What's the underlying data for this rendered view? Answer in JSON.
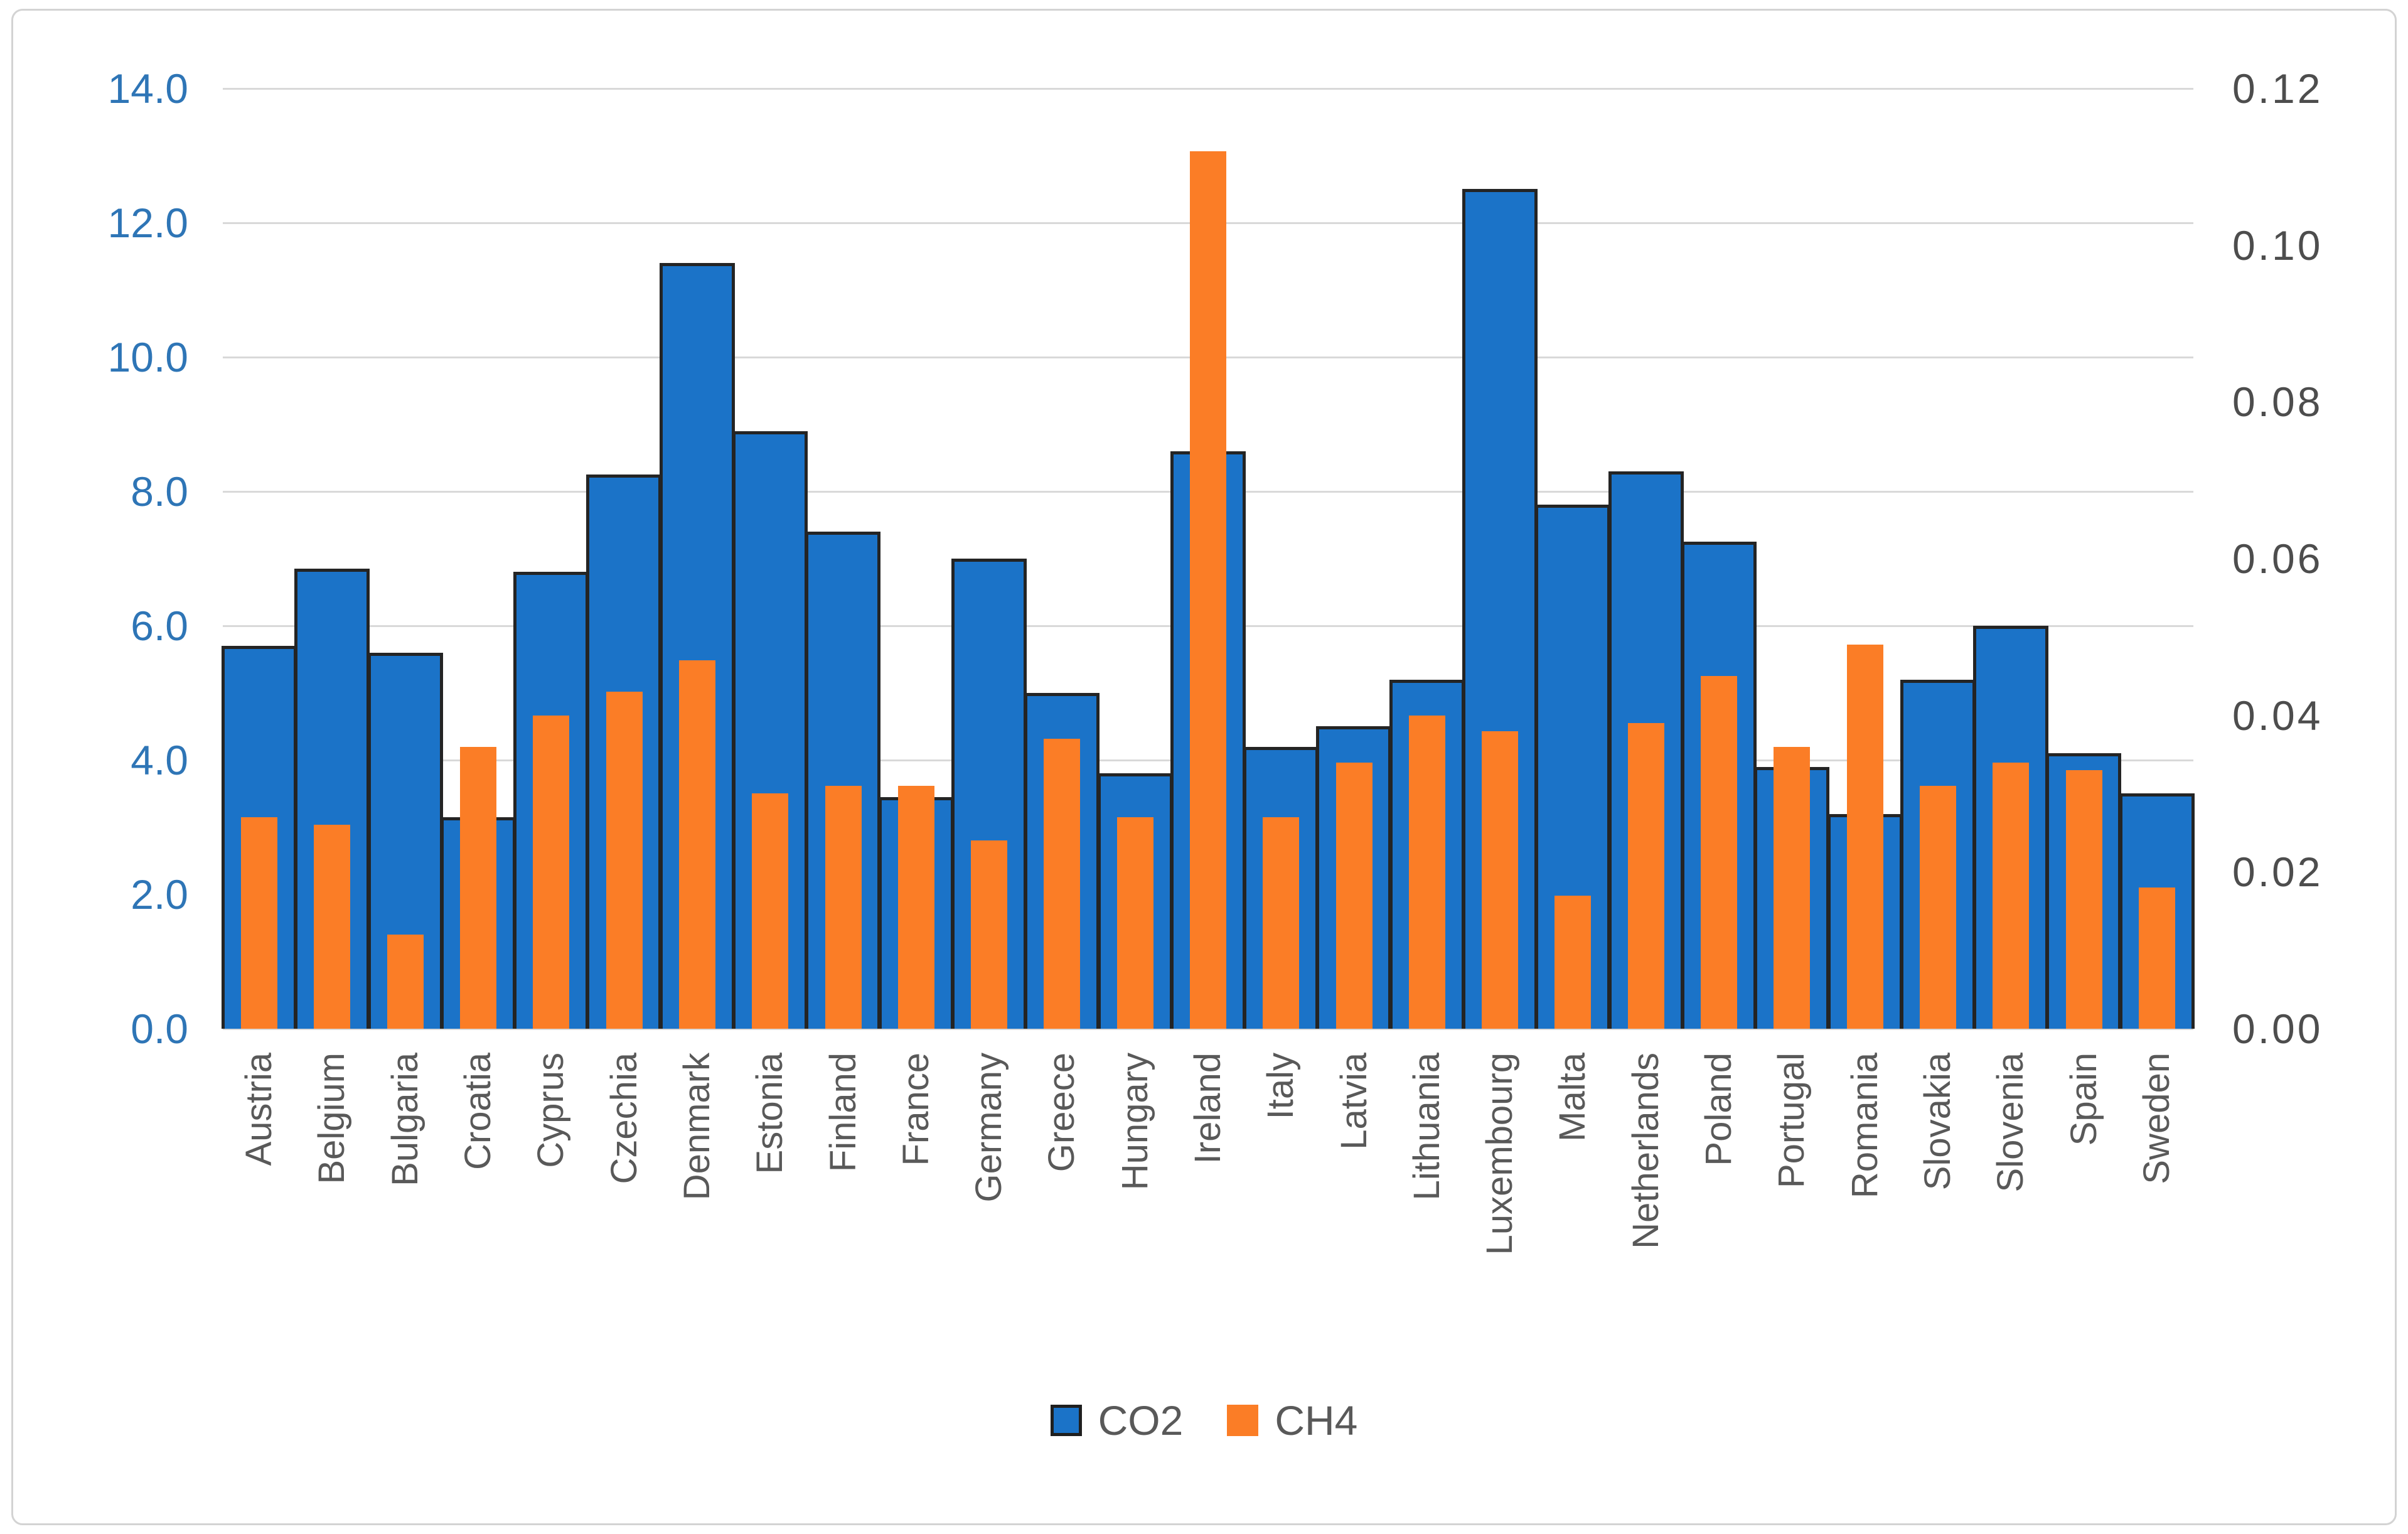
{
  "chart_data": {
    "type": "bar",
    "title": "",
    "categories": [
      "Austria",
      "Belgium",
      "Bulgaria",
      "Croatia",
      "Cyprus",
      "Czechia",
      "Denmark",
      "Estonia",
      "Finland",
      "France",
      "Germany",
      "Greece",
      "Hungary",
      "Ireland",
      "Italy",
      "Latvia",
      "Lithuania",
      "Luxembourg",
      "Malta",
      "Netherlands",
      "Poland",
      "Portugal",
      "Romania",
      "Slovakia",
      "Slovenia",
      "Spain",
      "Sweden"
    ],
    "series": [
      {
        "name": "CO2",
        "axis": "left",
        "color": "#1b73c8",
        "outline_color": "#242424",
        "values": [
          5.7,
          6.85,
          5.6,
          3.15,
          6.8,
          8.25,
          11.4,
          8.9,
          7.4,
          3.45,
          7.0,
          5.0,
          3.8,
          8.6,
          4.2,
          4.5,
          5.2,
          12.5,
          7.8,
          8.3,
          7.25,
          3.9,
          3.2,
          5.2,
          6.0,
          4.1,
          3.5
        ]
      },
      {
        "name": "CH4",
        "axis": "right",
        "color": "#fb7d26",
        "values": [
          0.027,
          0.026,
          0.012,
          0.036,
          0.04,
          0.043,
          0.047,
          0.03,
          0.031,
          0.031,
          0.024,
          0.037,
          0.027,
          0.112,
          0.027,
          0.034,
          0.04,
          0.038,
          0.017,
          0.039,
          0.045,
          0.036,
          0.049,
          0.031,
          0.034,
          0.033,
          0.018
        ]
      }
    ],
    "left_axis": {
      "min": 0,
      "max": 14,
      "step": 2,
      "tick_labels": [
        "14.0",
        "12.0",
        "10.0",
        "8.0",
        "6.0",
        "4.0",
        "2.0",
        "0.0"
      ],
      "text_color": "#2e75b6"
    },
    "right_axis": {
      "min": 0,
      "max": 0.12,
      "step": 0.02,
      "tick_labels": [
        "0.12",
        "0.10",
        "0.08",
        "0.06",
        "0.04",
        "0.02",
        "0.00"
      ],
      "text_color": "#4d4d4d"
    },
    "category_label_color": "#595959",
    "gridline_color": "#d9d9d9",
    "grid": true,
    "legend_position": "bottom-center"
  },
  "legend": {
    "items": [
      {
        "label": "CO2",
        "swatch_color": "#1b73c8",
        "swatch_outline": "#1f1f1f"
      },
      {
        "label": "CH4",
        "swatch_color": "#fb7d26",
        "swatch_outline": "none"
      }
    ],
    "text_color": "#595959"
  }
}
